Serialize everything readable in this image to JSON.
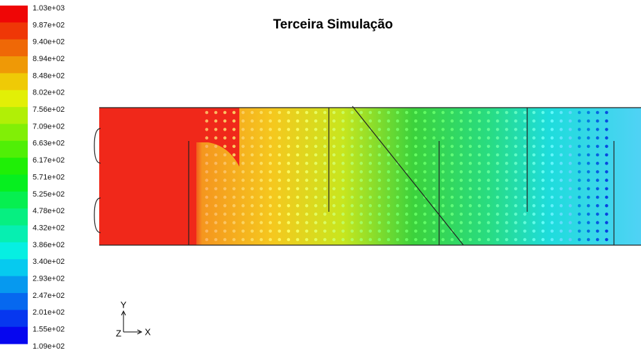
{
  "title": "Terceira Simulação",
  "legend": {
    "labels": [
      "1.03e+03",
      "9.87e+02",
      "9.40e+02",
      "8.94e+02",
      "8.48e+02",
      "8.02e+02",
      "7.56e+02",
      "7.09e+02",
      "6.63e+02",
      "6.17e+02",
      "5.71e+02",
      "5.25e+02",
      "4.78e+02",
      "4.32e+02",
      "3.86e+02",
      "3.40e+02",
      "2.93e+02",
      "2.47e+02",
      "2.01e+02",
      "1.55e+02",
      "1.09e+02"
    ]
  },
  "axes": {
    "y": "Y",
    "z": "Z",
    "x": "X"
  }
}
